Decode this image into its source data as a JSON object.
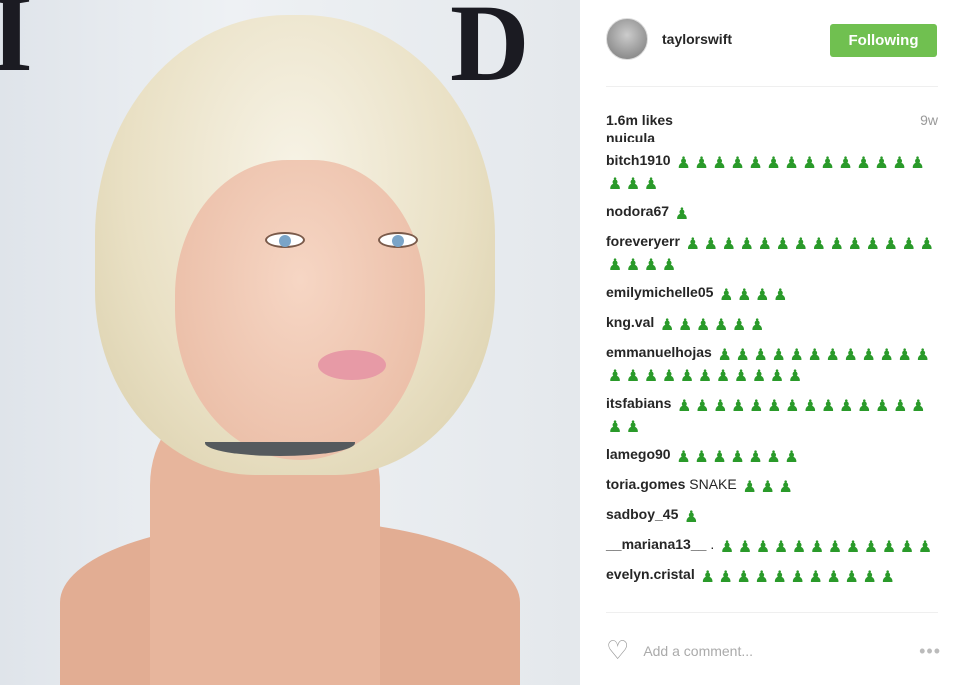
{
  "post": {
    "image_alt": "photo"
  },
  "header": {
    "username": "taylorswift",
    "follow_label": "Following"
  },
  "likes": "1.6m likes",
  "time": "9w",
  "cut_comment": "nuicula",
  "snake_glyph": "♟",
  "snake_color": "#2a9a2a",
  "comments": [
    {
      "user": "bitch1910",
      "text": "",
      "snakes": 17
    },
    {
      "user": "nodora67",
      "text": "",
      "snakes": 1
    },
    {
      "user": "foreveryerr",
      "text": "",
      "snakes": 18
    },
    {
      "user": "emilymichelle05",
      "text": "",
      "snakes": 4
    },
    {
      "user": "kng.val",
      "text": "",
      "snakes": 6
    },
    {
      "user": "emmanuelhojas",
      "text": "",
      "snakes": 23
    },
    {
      "user": "itsfabians",
      "text": "",
      "snakes": 16
    },
    {
      "user": "lamego90",
      "text": "",
      "snakes": 7
    },
    {
      "user": "toria.gomes",
      "text": "SNAKE",
      "snakes": 3
    },
    {
      "user": "sadboy_45",
      "text": "",
      "snakes": 1
    },
    {
      "user": "__mariana13__",
      "text": ".",
      "snakes": 12
    },
    {
      "user": "evelyn.cristal",
      "text": "",
      "snakes": 11
    }
  ],
  "footer": {
    "add_comment_placeholder": "Add a comment...",
    "more": "•••"
  }
}
